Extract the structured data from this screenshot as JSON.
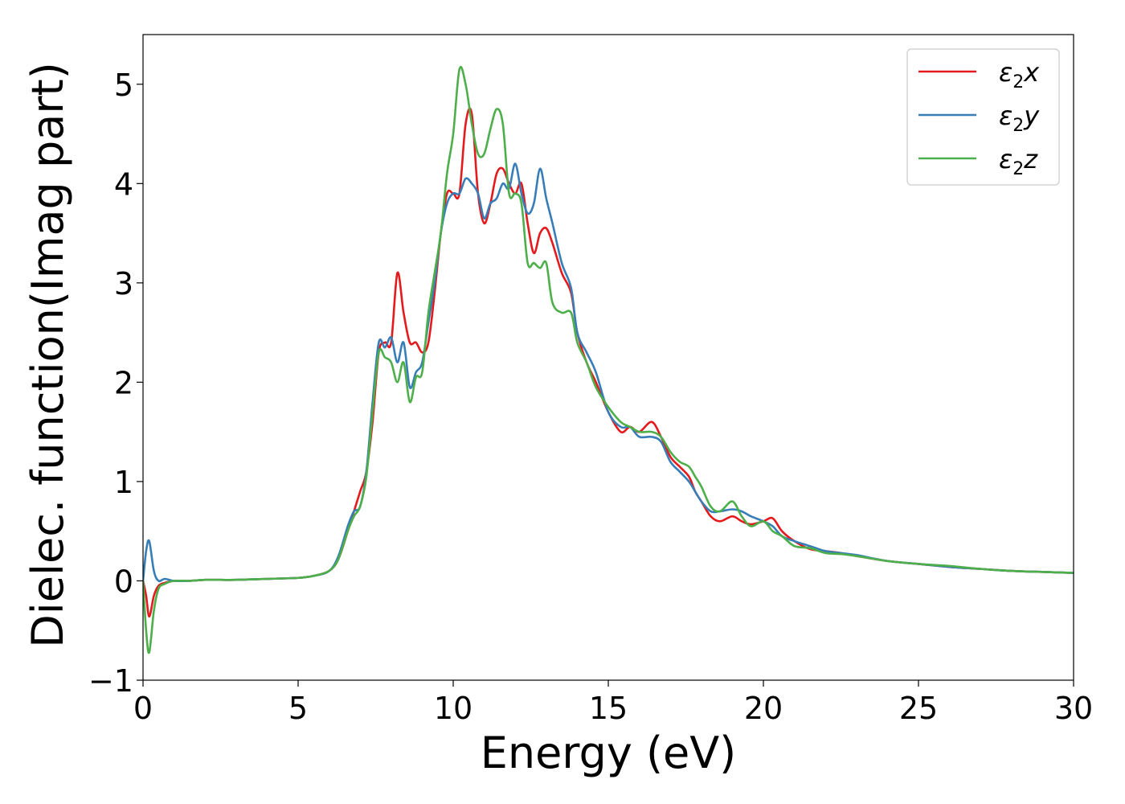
{
  "chart_data": {
    "type": "line",
    "title": "",
    "xlabel": "Energy (eV)",
    "ylabel": "Dielec. function(Imag part)",
    "xlim": [
      0,
      30
    ],
    "ylim": [
      -1,
      5.5
    ],
    "xticks": [
      0,
      5,
      10,
      15,
      20,
      25,
      30
    ],
    "xtick_labels": [
      "0",
      "5",
      "10",
      "15",
      "20",
      "25",
      "30"
    ],
    "yticks": [
      -1,
      0,
      1,
      2,
      3,
      4,
      5
    ],
    "ytick_labels": [
      "−1",
      "0",
      "1",
      "2",
      "3",
      "4",
      "5"
    ],
    "grid": false,
    "legend": {
      "position": "top-right"
    },
    "series": [
      {
        "name": "ε",
        "sub": "2",
        "suffix": "x",
        "color": "#e41a1c",
        "x": [
          0,
          0.1,
          0.2,
          0.35,
          0.5,
          0.7,
          1.0,
          1.5,
          2.0,
          2.5,
          3.0,
          4.0,
          5.0,
          5.5,
          6.0,
          6.3,
          6.6,
          6.8,
          7.0,
          7.2,
          7.4,
          7.6,
          7.8,
          8.0,
          8.2,
          8.4,
          8.6,
          8.8,
          9.0,
          9.2,
          9.4,
          9.6,
          9.8,
          10.0,
          10.2,
          10.4,
          10.6,
          10.8,
          11.0,
          11.2,
          11.4,
          11.6,
          11.8,
          12.0,
          12.2,
          12.4,
          12.6,
          12.8,
          13.0,
          13.2,
          13.5,
          13.8,
          14.0,
          14.3,
          14.6,
          15.0,
          15.4,
          15.7,
          16.0,
          16.4,
          16.7,
          17.0,
          17.3,
          17.6,
          17.8,
          18.0,
          18.3,
          18.6,
          19.0,
          19.3,
          19.6,
          20.0,
          20.3,
          20.6,
          21.0,
          21.5,
          22.0,
          22.5,
          23.0,
          24.0,
          25.0,
          26.0,
          27.0,
          28.0,
          29.0,
          30.0
        ],
        "y": [
          0.0,
          -0.15,
          -0.36,
          -0.15,
          -0.05,
          -0.02,
          0.0,
          0.0,
          0.01,
          0.01,
          0.01,
          0.02,
          0.03,
          0.05,
          0.1,
          0.22,
          0.5,
          0.7,
          0.9,
          1.1,
          1.6,
          2.3,
          2.4,
          2.4,
          3.1,
          2.7,
          2.4,
          2.4,
          2.3,
          2.4,
          2.9,
          3.5,
          3.9,
          3.9,
          3.9,
          4.6,
          4.7,
          3.9,
          3.6,
          3.8,
          4.1,
          4.15,
          4.0,
          3.9,
          4.0,
          3.6,
          3.3,
          3.5,
          3.55,
          3.4,
          3.1,
          2.9,
          2.5,
          2.2,
          2.0,
          1.7,
          1.5,
          1.55,
          1.5,
          1.6,
          1.45,
          1.25,
          1.15,
          1.05,
          0.9,
          0.8,
          0.65,
          0.6,
          0.65,
          0.6,
          0.57,
          0.6,
          0.63,
          0.5,
          0.4,
          0.32,
          0.3,
          0.28,
          0.25,
          0.2,
          0.17,
          0.14,
          0.12,
          0.1,
          0.09,
          0.08
        ]
      },
      {
        "name": "ε",
        "sub": "2",
        "suffix": "y",
        "color": "#377eb8",
        "x": [
          0,
          0.1,
          0.2,
          0.35,
          0.5,
          0.7,
          1.0,
          1.5,
          2.0,
          2.5,
          3.0,
          4.0,
          5.0,
          5.5,
          6.0,
          6.3,
          6.6,
          6.8,
          7.0,
          7.2,
          7.4,
          7.6,
          7.8,
          8.0,
          8.2,
          8.4,
          8.6,
          8.8,
          9.0,
          9.2,
          9.4,
          9.6,
          9.8,
          10.0,
          10.2,
          10.4,
          10.6,
          10.8,
          11.0,
          11.2,
          11.4,
          11.6,
          11.8,
          12.0,
          12.2,
          12.4,
          12.6,
          12.8,
          13.0,
          13.2,
          13.5,
          13.8,
          14.0,
          14.3,
          14.6,
          15.0,
          15.4,
          15.7,
          16.0,
          16.4,
          16.7,
          17.0,
          17.3,
          17.6,
          17.8,
          18.0,
          18.3,
          18.6,
          19.0,
          19.3,
          19.6,
          20.0,
          20.3,
          20.6,
          21.0,
          21.5,
          22.0,
          22.5,
          23.0,
          24.0,
          25.0,
          26.0,
          27.0,
          28.0,
          29.0,
          30.0
        ],
        "y": [
          0.0,
          0.3,
          0.4,
          0.1,
          0.0,
          0.02,
          0.0,
          0.0,
          0.01,
          0.01,
          0.01,
          0.02,
          0.03,
          0.05,
          0.1,
          0.25,
          0.55,
          0.7,
          0.75,
          1.1,
          1.8,
          2.4,
          2.35,
          2.45,
          2.2,
          2.4,
          1.95,
          2.1,
          2.2,
          2.6,
          3.0,
          3.5,
          3.8,
          3.9,
          3.9,
          4.05,
          4.0,
          3.9,
          3.65,
          3.8,
          3.85,
          4.0,
          3.95,
          4.2,
          3.9,
          3.7,
          3.8,
          4.15,
          3.85,
          3.6,
          3.2,
          2.95,
          2.5,
          2.3,
          2.1,
          1.7,
          1.55,
          1.55,
          1.45,
          1.45,
          1.4,
          1.2,
          1.1,
          1.0,
          0.9,
          0.8,
          0.7,
          0.7,
          0.72,
          0.7,
          0.65,
          0.6,
          0.55,
          0.45,
          0.4,
          0.35,
          0.3,
          0.28,
          0.26,
          0.2,
          0.17,
          0.14,
          0.12,
          0.1,
          0.09,
          0.08
        ]
      },
      {
        "name": "ε",
        "sub": "2",
        "suffix": "z",
        "color": "#4daf4a",
        "x": [
          0,
          0.1,
          0.2,
          0.35,
          0.5,
          0.7,
          1.0,
          1.5,
          2.0,
          2.5,
          3.0,
          4.0,
          5.0,
          5.5,
          6.0,
          6.3,
          6.6,
          6.8,
          7.0,
          7.2,
          7.4,
          7.6,
          7.8,
          8.0,
          8.2,
          8.4,
          8.6,
          8.8,
          9.0,
          9.2,
          9.4,
          9.6,
          9.8,
          10.0,
          10.2,
          10.4,
          10.6,
          10.8,
          11.0,
          11.2,
          11.4,
          11.6,
          11.8,
          12.0,
          12.2,
          12.4,
          12.6,
          12.8,
          13.0,
          13.2,
          13.5,
          13.8,
          14.0,
          14.3,
          14.6,
          15.0,
          15.4,
          15.7,
          16.0,
          16.4,
          16.7,
          17.0,
          17.3,
          17.6,
          17.8,
          18.0,
          18.3,
          18.6,
          19.0,
          19.3,
          19.6,
          20.0,
          20.3,
          20.6,
          21.0,
          21.5,
          22.0,
          22.5,
          23.0,
          24.0,
          25.0,
          26.0,
          27.0,
          28.0,
          29.0,
          30.0
        ],
        "y": [
          0.0,
          -0.5,
          -0.72,
          -0.3,
          -0.08,
          -0.03,
          0.0,
          0.0,
          0.01,
          0.01,
          0.01,
          0.02,
          0.03,
          0.05,
          0.1,
          0.22,
          0.5,
          0.65,
          0.75,
          1.05,
          1.7,
          2.3,
          2.25,
          2.2,
          2.0,
          2.2,
          1.8,
          2.05,
          2.1,
          2.7,
          3.1,
          3.5,
          4.1,
          4.5,
          5.15,
          5.0,
          4.6,
          4.3,
          4.3,
          4.55,
          4.75,
          4.6,
          3.9,
          3.9,
          3.8,
          3.2,
          3.2,
          3.15,
          3.2,
          2.8,
          2.7,
          2.7,
          2.4,
          2.2,
          1.95,
          1.75,
          1.6,
          1.55,
          1.5,
          1.5,
          1.45,
          1.3,
          1.2,
          1.15,
          1.05,
          0.95,
          0.75,
          0.7,
          0.8,
          0.65,
          0.55,
          0.6,
          0.5,
          0.45,
          0.35,
          0.33,
          0.28,
          0.27,
          0.25,
          0.2,
          0.17,
          0.15,
          0.12,
          0.1,
          0.09,
          0.08
        ]
      }
    ]
  }
}
